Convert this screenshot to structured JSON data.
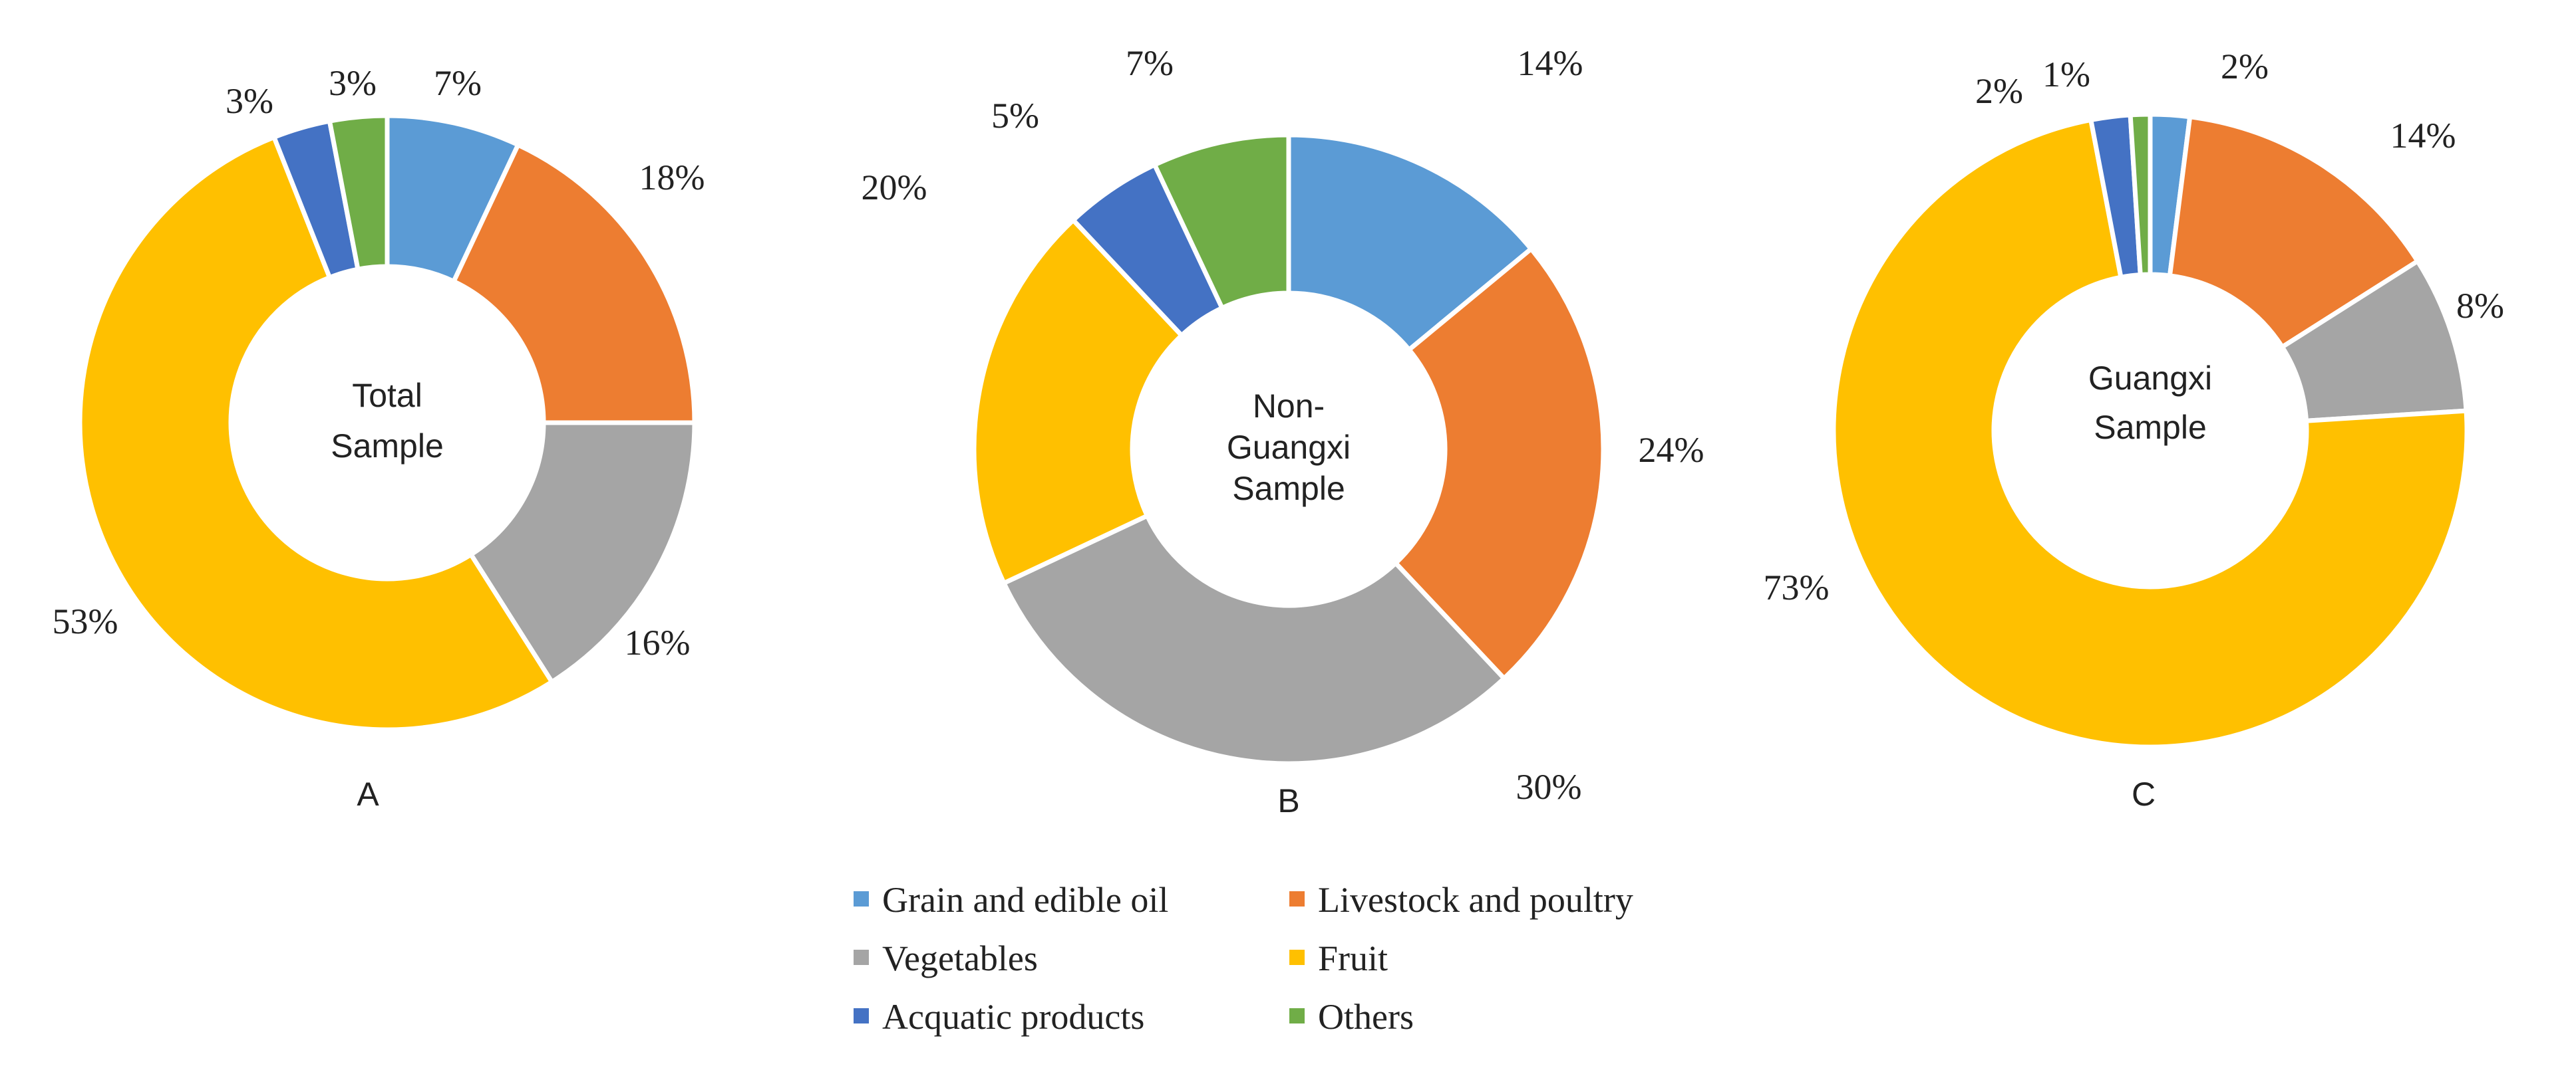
{
  "chart_data": {
    "type": "donut",
    "categories": [
      "Grain and edible oil",
      "Livestock and poultry",
      "Vegetables",
      "Fruit",
      "Acquatic products",
      "Others"
    ],
    "colors": [
      "#5b9bd5",
      "#ed7d31",
      "#a5a5a5",
      "#ffc000",
      "#4472c4",
      "#70ad47"
    ],
    "charts": [
      {
        "panel": "A",
        "center_label": [
          "Total",
          "Sample"
        ],
        "values": [
          7,
          18,
          16,
          53,
          3,
          3
        ],
        "labels": [
          "7%",
          "18%",
          "16%",
          "53%",
          "3%",
          "3%"
        ]
      },
      {
        "panel": "B",
        "center_label": [
          "Non-",
          "Guangxi",
          "Sample"
        ],
        "values": [
          14,
          24,
          30,
          20,
          5,
          7
        ],
        "labels": [
          "14%",
          "24%",
          "30%",
          "20%",
          "5%",
          "7%"
        ]
      },
      {
        "panel": "C",
        "center_label": [
          "Guangxi",
          "Sample"
        ],
        "values": [
          2,
          14,
          8,
          73,
          2,
          1
        ],
        "labels": [
          "2%",
          "14%",
          "8%",
          "73%",
          "2%",
          "1%"
        ]
      }
    ],
    "legend": {
      "placement": "bottom-center",
      "entries": [
        "Grain and edible oil",
        "Livestock and poultry",
        "Vegetables",
        "Fruit",
        "Acquatic products",
        "Others"
      ]
    }
  }
}
